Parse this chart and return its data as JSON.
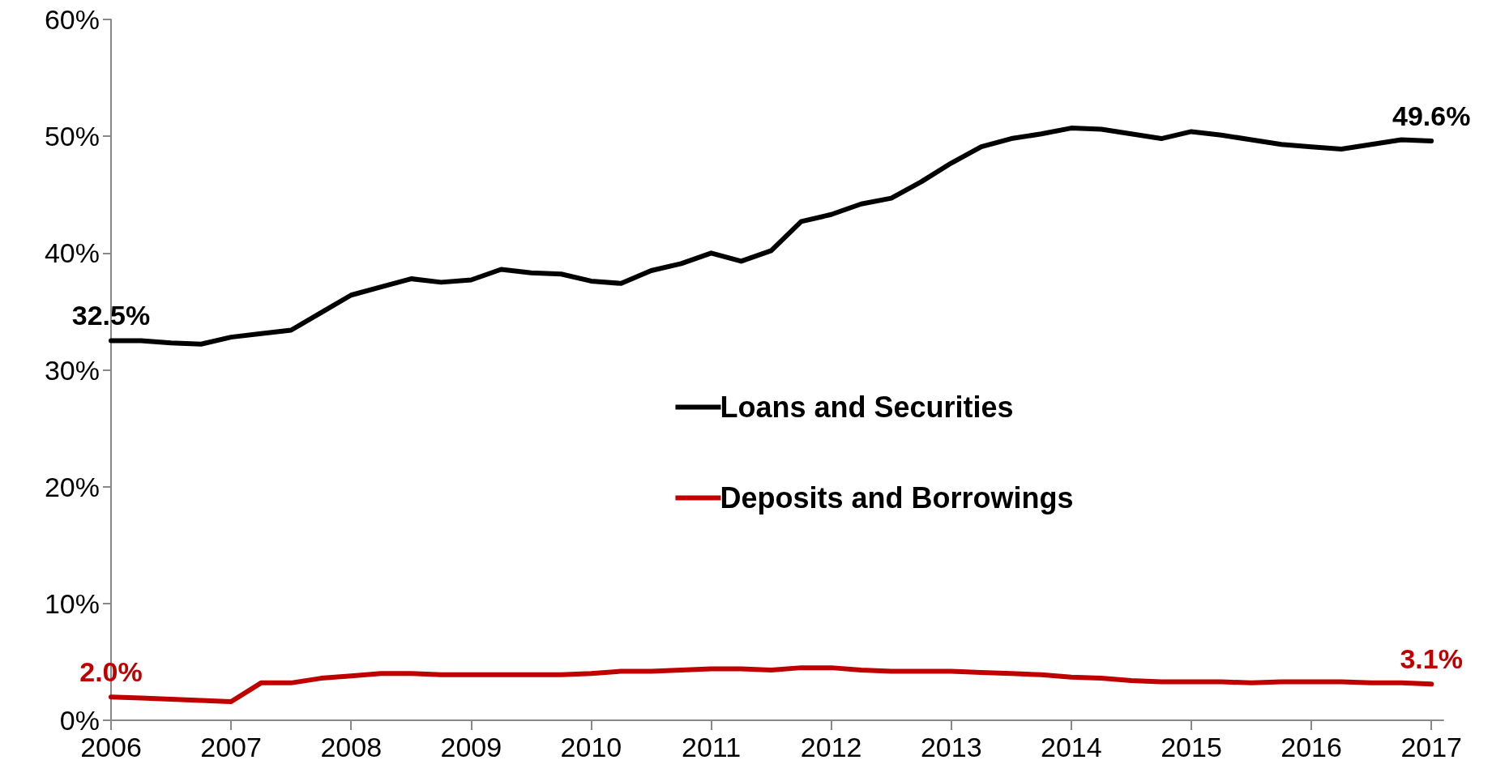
{
  "chart_data": {
    "type": "line",
    "x": [
      2006,
      2006.25,
      2006.5,
      2006.75,
      2007,
      2007.25,
      2007.5,
      2007.75,
      2008,
      2008.25,
      2008.5,
      2008.75,
      2009,
      2009.25,
      2009.5,
      2009.75,
      2010,
      2010.25,
      2010.5,
      2010.75,
      2011,
      2011.25,
      2011.5,
      2011.75,
      2012,
      2012.25,
      2012.5,
      2012.75,
      2013,
      2013.25,
      2013.5,
      2013.75,
      2014,
      2014.25,
      2014.5,
      2014.75,
      2015,
      2015.25,
      2015.5,
      2015.75,
      2016,
      2016.25,
      2016.5,
      2016.75,
      2017
    ],
    "series": [
      {
        "name": "Loans and Securities",
        "color": "#000000",
        "values": [
          32.5,
          32.5,
          32.3,
          32.2,
          32.8,
          33.1,
          33.4,
          34.9,
          36.4,
          37.1,
          37.8,
          37.5,
          37.7,
          38.6,
          38.3,
          38.2,
          37.6,
          37.4,
          38.5,
          39.1,
          40.0,
          39.3,
          40.2,
          42.7,
          43.3,
          44.2,
          44.7,
          46.1,
          47.7,
          49.1,
          49.8,
          50.2,
          50.7,
          50.6,
          50.2,
          49.8,
          50.4,
          50.1,
          49.7,
          49.3,
          49.1,
          48.9,
          49.3,
          49.7,
          49.6
        ],
        "value_labels": [
          "32.5%",
          null,
          null,
          null,
          null,
          null,
          null,
          null,
          null,
          null,
          null,
          null,
          null,
          null,
          null,
          null,
          null,
          null,
          null,
          null,
          null,
          null,
          null,
          null,
          null,
          null,
          null,
          null,
          null,
          null,
          null,
          null,
          null,
          null,
          null,
          null,
          null,
          null,
          null,
          null,
          null,
          null,
          null,
          null,
          "49.6%"
        ]
      },
      {
        "name": "Deposits and Borrowings",
        "color": "#c00000",
        "values": [
          2.0,
          1.9,
          1.8,
          1.7,
          1.6,
          3.2,
          3.2,
          3.6,
          3.8,
          4.0,
          4.0,
          3.9,
          3.9,
          3.9,
          3.9,
          3.9,
          4.0,
          4.2,
          4.2,
          4.3,
          4.4,
          4.4,
          4.3,
          4.5,
          4.5,
          4.3,
          4.2,
          4.2,
          4.2,
          4.1,
          4.0,
          3.9,
          3.7,
          3.6,
          3.4,
          3.3,
          3.3,
          3.3,
          3.2,
          3.3,
          3.3,
          3.3,
          3.2,
          3.2,
          3.1
        ],
        "value_labels": [
          "2.0%",
          null,
          null,
          null,
          null,
          null,
          null,
          null,
          null,
          null,
          null,
          null,
          null,
          null,
          null,
          null,
          null,
          null,
          null,
          null,
          null,
          null,
          null,
          null,
          null,
          null,
          null,
          null,
          null,
          null,
          null,
          null,
          null,
          null,
          null,
          null,
          null,
          null,
          null,
          null,
          null,
          null,
          null,
          null,
          "3.1%"
        ]
      }
    ],
    "xlim": [
      2006,
      2017.1
    ],
    "xticks": [
      2006,
      2007,
      2008,
      2009,
      2010,
      2011,
      2012,
      2013,
      2014,
      2015,
      2016,
      2017
    ],
    "ylim": [
      0,
      60
    ],
    "yticks": [
      {
        "value": 0,
        "label": "0%"
      },
      {
        "value": 10,
        "label": "10%"
      },
      {
        "value": 20,
        "label": "20%"
      },
      {
        "value": 30,
        "label": "30%"
      },
      {
        "value": 40,
        "label": "40%"
      },
      {
        "value": 50,
        "label": "50%"
      },
      {
        "value": 60,
        "label": "60%"
      }
    ],
    "grid": false,
    "legend": "center",
    "marker": "none",
    "line_style": "solid"
  }
}
